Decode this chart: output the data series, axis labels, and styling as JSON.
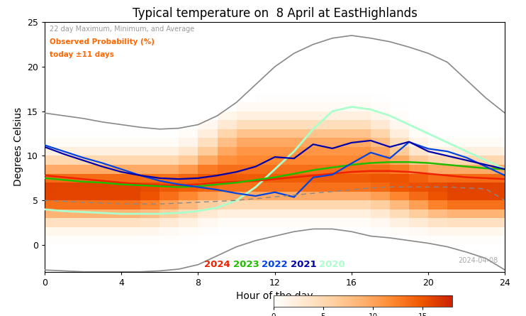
{
  "title": "Typical temperature on  8 April at EastHighlands",
  "xlabel": "Hour of the day",
  "ylabel": "Degrees Celsius",
  "xlim": [
    0,
    24
  ],
  "ylim": [
    -3,
    25
  ],
  "date_label": "2024-04-08",
  "legend_years": [
    "2024",
    "2023",
    "2022",
    "2021",
    "2020"
  ],
  "legend_year_colors": [
    "#ee2200",
    "#22bb00",
    "#0044dd",
    "#0000aa",
    "#aaffcc"
  ],
  "legend_text1": "22 day Maximum, Minimum, and Average",
  "legend_text2": "Observed Probability (%)",
  "legend_text3": "today ±11 days",
  "heatmap_vmin": 0,
  "heatmap_vmax": 18,
  "gray_line_color": "#888888",
  "avg_line_color": "#888888",
  "background_color": "#ffffff",
  "max_line": [
    14.8,
    14.5,
    14.2,
    13.8,
    13.5,
    13.2,
    13.0,
    13.1,
    13.5,
    14.5,
    16.0,
    18.0,
    20.0,
    21.5,
    22.5,
    23.2,
    23.5,
    23.2,
    22.8,
    22.2,
    21.5,
    20.5,
    18.5,
    16.5,
    14.8
  ],
  "min_line": [
    -2.8,
    -2.9,
    -3.0,
    -3.0,
    -3.0,
    -3.0,
    -2.9,
    -2.7,
    -2.2,
    -1.2,
    -0.2,
    0.5,
    1.0,
    1.5,
    1.8,
    1.8,
    1.5,
    1.0,
    0.8,
    0.5,
    0.2,
    -0.2,
    -0.8,
    -1.5,
    -2.8
  ],
  "avg_line": [
    5.0,
    4.9,
    4.8,
    4.7,
    4.6,
    4.6,
    4.6,
    4.7,
    4.8,
    4.9,
    5.0,
    5.2,
    5.4,
    5.6,
    5.8,
    6.0,
    6.2,
    6.4,
    6.5,
    6.5,
    6.5,
    6.5,
    6.4,
    6.3,
    5.0
  ],
  "red_2024": [
    7.8,
    7.6,
    7.4,
    7.2,
    7.0,
    6.8,
    6.7,
    6.7,
    6.8,
    7.0,
    7.1,
    7.2,
    7.4,
    7.6,
    7.8,
    8.0,
    8.2,
    8.3,
    8.3,
    8.2,
    8.0,
    7.8,
    7.6,
    7.5,
    7.4
  ],
  "grn_2023": [
    7.5,
    7.3,
    7.1,
    7.0,
    6.8,
    6.7,
    6.6,
    6.5,
    6.6,
    6.8,
    7.0,
    7.3,
    7.6,
    8.0,
    8.4,
    8.7,
    9.0,
    9.2,
    9.3,
    9.3,
    9.2,
    9.0,
    8.8,
    8.6,
    8.5
  ],
  "blu_2022": [
    11.2,
    10.5,
    9.8,
    9.2,
    8.5,
    7.8,
    7.2,
    6.8,
    6.5,
    6.2,
    5.8,
    5.5,
    5.5,
    6.0,
    7.0,
    8.2,
    9.2,
    10.0,
    10.5,
    10.8,
    10.8,
    10.5,
    9.8,
    8.8,
    7.8
  ],
  "blu_2021": [
    11.0,
    10.2,
    9.5,
    8.8,
    8.2,
    7.8,
    7.5,
    7.4,
    7.5,
    7.8,
    8.2,
    8.8,
    9.5,
    10.2,
    10.8,
    11.2,
    11.5,
    11.5,
    11.3,
    11.0,
    10.5,
    10.0,
    9.5,
    9.0,
    8.5
  ],
  "cyn_2020": [
    4.0,
    3.8,
    3.7,
    3.6,
    3.5,
    3.5,
    3.5,
    3.6,
    3.8,
    4.2,
    5.0,
    6.5,
    8.5,
    10.5,
    13.0,
    15.0,
    15.5,
    15.2,
    14.5,
    13.5,
    12.5,
    11.5,
    10.5,
    9.5,
    8.5
  ]
}
